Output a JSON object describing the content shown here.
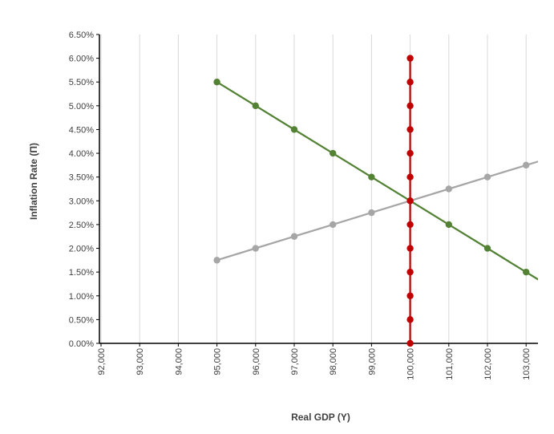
{
  "chart_data": {
    "type": "line",
    "xlabel": "Real GDP (Y)",
    "ylabel": "Inflation Rate (Π)",
    "xlim": [
      92000,
      103400
    ],
    "ylim": [
      0,
      0.065
    ],
    "x_ticks": [
      92000,
      93000,
      94000,
      95000,
      96000,
      97000,
      98000,
      99000,
      100000,
      101000,
      102000,
      103000
    ],
    "x_tick_labels": [
      "92,000",
      "93,000",
      "94,000",
      "95,000",
      "96,000",
      "97,000",
      "98,000",
      "99,000",
      "100,000",
      "101,000",
      "102,000",
      "103,000"
    ],
    "y_ticks": [
      0,
      0.005,
      0.01,
      0.015,
      0.02,
      0.025,
      0.03,
      0.035,
      0.04,
      0.045,
      0.05,
      0.055,
      0.06,
      0.065
    ],
    "y_tick_labels": [
      "0.00%",
      "0.50%",
      "1.00%",
      "1.50%",
      "2.00%",
      "2.50%",
      "3.00%",
      "3.50%",
      "4.00%",
      "4.50%",
      "5.00%",
      "5.50%",
      "6.00%",
      "6.50%"
    ],
    "grid": "vertical",
    "legend": "none",
    "series": [
      {
        "color": "#a6a6a6",
        "x": [
          95000,
          96000,
          97000,
          98000,
          99000,
          100000,
          101000,
          102000,
          103000
        ],
        "y": [
          0.0175,
          0.02,
          0.0225,
          0.025,
          0.0275,
          0.03,
          0.0325,
          0.035,
          0.0375
        ]
      },
      {
        "color": "#548235",
        "x": [
          95000,
          96000,
          97000,
          98000,
          99000,
          100000,
          101000,
          102000,
          103000
        ],
        "y": [
          0.055,
          0.05,
          0.045,
          0.04,
          0.035,
          0.03,
          0.025,
          0.02,
          0.015
        ]
      },
      {
        "color": "#c00000",
        "x": [
          100000,
          100000,
          100000,
          100000,
          100000,
          100000,
          100000,
          100000,
          100000,
          100000,
          100000,
          100000,
          100000
        ],
        "y": [
          0,
          0.005,
          0.01,
          0.015,
          0.02,
          0.025,
          0.03,
          0.035,
          0.04,
          0.045,
          0.05,
          0.055,
          0.06
        ]
      }
    ]
  }
}
